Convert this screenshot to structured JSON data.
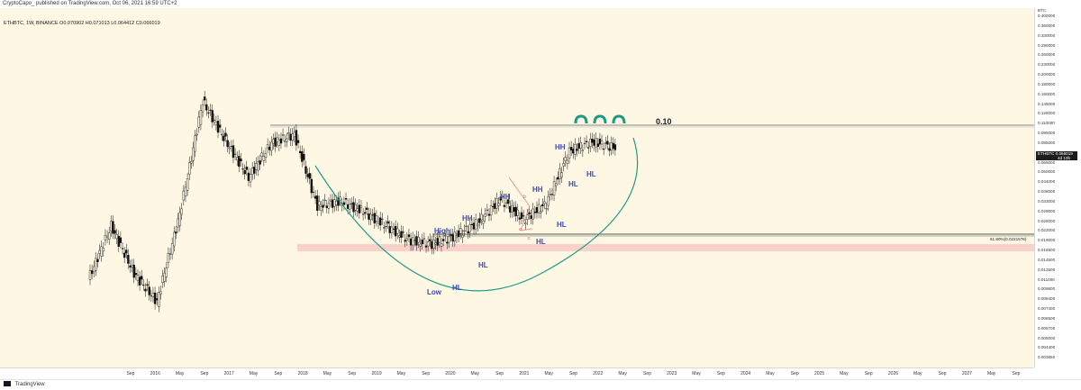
{
  "header": {
    "publish_text": "CryptoCapo_ published on TradingView.com, Oct 06, 2021 16:59 UTC+2",
    "legend": "ETHBTC, 1W, BINANCE  O0.070902  H0.071013  L0.064412  C0.066019"
  },
  "footer": {
    "brand": "TradingView",
    "logo_icon": "tradingview-logo-icon"
  },
  "price_axis": {
    "currency": "BTC",
    "ticks": [
      "0.400000",
      "0.360000",
      "0.330000",
      "0.290000",
      "0.260000",
      "0.230000",
      "0.200000",
      "0.180000",
      "0.160000",
      "0.145000",
      "0.125000",
      "0.110000",
      "0.095000",
      "0.085000",
      "0.075000",
      "0.065000",
      "0.050000",
      "0.044000",
      "0.038000",
      "0.033000",
      "0.029000",
      "0.025000",
      "0.022000",
      "0.019000",
      "0.016500",
      "0.014500",
      "0.012500",
      "0.011000",
      "0.009600",
      "0.008400",
      "0.007400",
      "0.006500",
      "0.005700",
      "0.005000",
      "0.004400",
      "0.003850"
    ],
    "current_badge": {
      "symbol": "ETHBTC",
      "value": "0.066019",
      "countdown": "4d 10h"
    }
  },
  "time_axis": {
    "labels": [
      "Sep",
      "2016",
      "May",
      "Sep",
      "2017",
      "May",
      "Sep",
      "2018",
      "May",
      "Sep",
      "2019",
      "May",
      "Sep",
      "2020",
      "May",
      "Sep",
      "2021",
      "May",
      "Sep",
      "2022",
      "May",
      "Sep",
      "2023",
      "May",
      "Sep",
      "2024",
      "May",
      "Sep",
      "2025",
      "May",
      "Sep",
      "2026",
      "May",
      "Sep",
      "2027",
      "May",
      "Sep"
    ]
  },
  "annotations": {
    "resistance_value": "0.10",
    "fib_label": "61.80%(0.0221576)",
    "swing_labels": [
      {
        "text": "High",
        "color": "#3b4bb5"
      },
      {
        "text": "Low",
        "color": "#3b4bb5"
      },
      {
        "text": "HL",
        "color": "#3b4bb5"
      },
      {
        "text": "HH",
        "color": "#3b4bb5"
      },
      {
        "text": "HL",
        "color": "#3b4bb5"
      },
      {
        "text": "HH",
        "color": "#3b4bb5"
      },
      {
        "text": "HH",
        "color": "#3b4bb5"
      },
      {
        "text": "HL",
        "color": "#3b4bb5"
      },
      {
        "text": "HL",
        "color": "#3b4bb5"
      },
      {
        "text": "HH",
        "color": "#3b4bb5"
      },
      {
        "text": "HL",
        "color": "#3b4bb5"
      },
      {
        "text": "HL",
        "color": "#3b4bb5"
      }
    ],
    "abc_labels": [
      "a",
      "b",
      "c"
    ],
    "cup_color": "#229c8a",
    "pattern_icon": "triple-arch-icon",
    "pattern_color": "#1f9a86"
  },
  "chart_data": {
    "type": "candlestick",
    "symbol": "ETHBTC",
    "timeframe": "1W",
    "exchange": "BINANCE",
    "scale": "log",
    "series_color": "#111111",
    "x": [
      "2016-03",
      "2016-06",
      "2016-09",
      "2016-12",
      "2017-03",
      "2017-06",
      "2017-09",
      "2017-12",
      "2018-03",
      "2018-06",
      "2018-09",
      "2018-12",
      "2019-03",
      "2019-06",
      "2019-09",
      "2019-12",
      "2020-03",
      "2020-06",
      "2020-09",
      "2020-12",
      "2021-03",
      "2021-06",
      "2021-09",
      "2021-10"
    ],
    "close": [
      0.012,
      0.024,
      0.013,
      0.009,
      0.028,
      0.12,
      0.072,
      0.045,
      0.07,
      0.078,
      0.031,
      0.033,
      0.029,
      0.024,
      0.02,
      0.019,
      0.021,
      0.025,
      0.034,
      0.026,
      0.032,
      0.063,
      0.071,
      0.066
    ],
    "horizontal_levels": [
      {
        "label": "0.10",
        "value": 0.1,
        "color": "#888888"
      },
      {
        "label": "61.80%(0.0221576)",
        "value": 0.0221576,
        "color": "#222222"
      },
      {
        "value": 0.0278,
        "color": "#f4b8b8"
      }
    ],
    "ylim": [
      0.00385,
      0.4
    ],
    "xlim": [
      "2015-08",
      "2027-10"
    ]
  }
}
